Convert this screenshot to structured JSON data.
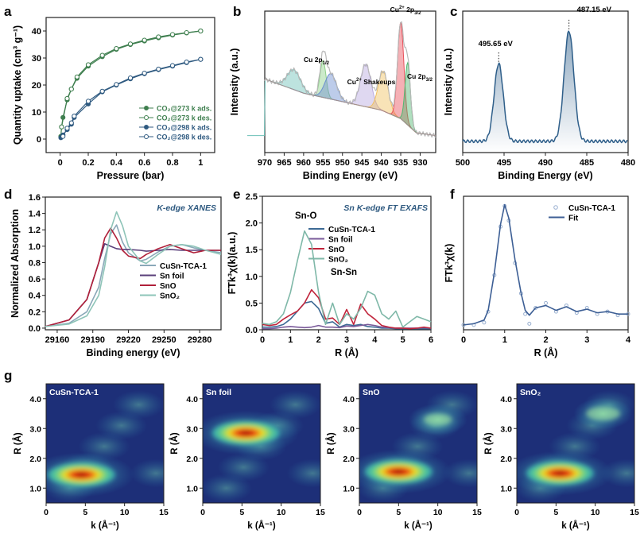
{
  "chart_data": [
    {
      "panel": "a",
      "type": "line",
      "xlabel": "Pressure (bar)",
      "ylabel": "Quantity uptake (cm³ g⁻¹)",
      "xlim": [
        -0.1,
        1.1
      ],
      "ylim": [
        -5,
        45
      ],
      "xticks": [
        0.0,
        0.2,
        0.4,
        0.6,
        0.8,
        1.0
      ],
      "yticks": [
        0,
        10,
        20,
        30,
        40
      ],
      "legend": "bottom-right",
      "series": [
        {
          "name": "CO₂@273 k ads.",
          "color": "#3f7f4f",
          "filled": true,
          "points": [
            [
              0.005,
              1
            ],
            [
              0.01,
              4.5
            ],
            [
              0.02,
              8
            ],
            [
              0.05,
              14.5
            ],
            [
              0.08,
              18.5
            ],
            [
              0.12,
              22.5
            ],
            [
              0.2,
              27
            ],
            [
              0.3,
              30.5
            ],
            [
              0.4,
              33.2
            ],
            [
              0.5,
              35
            ],
            [
              0.6,
              36.3
            ],
            [
              0.7,
              37.5
            ],
            [
              0.8,
              38.5
            ],
            [
              0.9,
              39.3
            ],
            [
              1.0,
              40
            ]
          ]
        },
        {
          "name": "CO₂@273 k des.",
          "color": "#3f7f4f",
          "filled": false,
          "points": [
            [
              0.01,
              4.5
            ],
            [
              0.05,
              15
            ],
            [
              0.08,
              18.5
            ],
            [
              0.12,
              23
            ],
            [
              0.2,
              27.5
            ],
            [
              0.3,
              31
            ],
            [
              0.4,
              33.5
            ],
            [
              0.5,
              35.2
            ],
            [
              0.6,
              36.6
            ],
            [
              0.7,
              37.8
            ],
            [
              0.8,
              38.7
            ],
            [
              0.9,
              39.4
            ],
            [
              1.0,
              40
            ]
          ]
        },
        {
          "name": "CO₂@298 k ads.",
          "color": "#2f5a80",
          "filled": true,
          "points": [
            [
              0.005,
              0.5
            ],
            [
              0.02,
              1.5
            ],
            [
              0.05,
              3.5
            ],
            [
              0.08,
              5.5
            ],
            [
              0.1,
              8
            ],
            [
              0.2,
              13
            ],
            [
              0.3,
              17.5
            ],
            [
              0.4,
              20
            ],
            [
              0.5,
              22.3
            ],
            [
              0.6,
              24.2
            ],
            [
              0.7,
              25.7
            ],
            [
              0.8,
              27
            ],
            [
              0.9,
              28.3
            ],
            [
              1.0,
              29.5
            ]
          ]
        },
        {
          "name": "CO₂@298 k des.",
          "color": "#2f5a80",
          "filled": false,
          "points": [
            [
              0.02,
              1
            ],
            [
              0.05,
              4
            ],
            [
              0.08,
              6
            ],
            [
              0.1,
              8.5
            ],
            [
              0.2,
              14
            ],
            [
              0.3,
              17.7
            ],
            [
              0.4,
              20.2
            ],
            [
              0.5,
              22.6
            ],
            [
              0.6,
              24.4
            ],
            [
              0.7,
              25.9
            ],
            [
              0.8,
              27.2
            ],
            [
              0.9,
              28.5
            ],
            [
              1.0,
              29.5
            ]
          ]
        }
      ]
    },
    {
      "panel": "b",
      "type": "line",
      "xlabel": "Binding Energy (eV)",
      "ylabel": "Intensity (a.u.)",
      "xlim": [
        970,
        926
      ],
      "ylim": [
        0,
        100
      ],
      "xticks": [
        970,
        965,
        960,
        955,
        950,
        945,
        940,
        935,
        930
      ],
      "baseline": [
        [
          970,
          52
        ],
        [
          960,
          42
        ],
        [
          950,
          36
        ],
        [
          940,
          30
        ],
        [
          935,
          24
        ],
        [
          931,
          14
        ],
        [
          926,
          12
        ]
      ],
      "peaks": [
        {
          "center": 962.5,
          "fwhm": 4,
          "height": 14,
          "color": "#6cc0b8"
        },
        {
          "center": 955,
          "fwhm": 1.8,
          "height": 26,
          "color": "#8fd08a"
        },
        {
          "center": 953,
          "fwhm": 3.5,
          "height": 18,
          "color": "#6c8fd0"
        },
        {
          "center": 944,
          "fwhm": 3.2,
          "height": 30,
          "color": "#b9a8e0"
        },
        {
          "center": 939.5,
          "fwhm": 3,
          "height": 28,
          "color": "#f0c060"
        },
        {
          "center": 935,
          "fwhm": 1.9,
          "height": 68,
          "color": "#e8505a"
        },
        {
          "center": 933.2,
          "fwhm": 1.6,
          "height": 44,
          "color": "#50b870"
        }
      ],
      "annotations": [
        {
          "text": "Cu 2p",
          "sub": "1/2",
          "sup": ""
        },
        {
          "text": "Cu",
          "sup": "2+",
          "after": " Shakeups"
        },
        {
          "text": "Cu",
          "sup": "2+",
          "after": " 2p",
          "sub": "3/2"
        },
        {
          "text": "Cu 2p",
          "sub": "3/2",
          "sup": ""
        }
      ]
    },
    {
      "panel": "c",
      "type": "line",
      "xlabel": "Binding Energy (eV)",
      "ylabel": "Intensity (a.u.)",
      "xlim": [
        500,
        480
      ],
      "ylim": [
        0,
        100
      ],
      "xticks": [
        500,
        495,
        490,
        485,
        480
      ],
      "peaks": [
        {
          "center": 495.65,
          "fwhm": 1.3,
          "height": 55
        },
        {
          "center": 487.15,
          "fwhm": 1.4,
          "height": 78
        }
      ],
      "color": "#2f5f8a",
      "annotations": [
        "495.65 eV",
        "487.15 eV"
      ]
    },
    {
      "panel": "d",
      "type": "line",
      "xlabel": "Binding energy (eV)",
      "ylabel": "Normalized Absorption",
      "title": "K-edge XANES",
      "xlim": [
        29150,
        29298
      ],
      "ylim": [
        -0.02,
        1.6
      ],
      "xticks": [
        29160,
        29190,
        29220,
        29250,
        29280
      ],
      "yticks": [
        0.0,
        0.2,
        0.4,
        0.6,
        0.8,
        1.0,
        1.2,
        1.4,
        1.6
      ],
      "legend": "bottom-right",
      "x": [
        29150,
        29170,
        29185,
        29195,
        29200,
        29205,
        29210,
        29215,
        29220,
        29230,
        29235,
        29245,
        29255,
        29265,
        29275,
        29285,
        29298
      ],
      "series": [
        {
          "name": "CuSn-TCA-1",
          "color": "#8aa8b8",
          "values": [
            0.02,
            0.06,
            0.2,
            0.5,
            0.85,
            1.15,
            1.26,
            1.05,
            0.92,
            0.82,
            0.84,
            0.93,
            1.0,
            1.02,
            0.98,
            0.95,
            0.92
          ]
        },
        {
          "name": "Sn foil",
          "color": "#5a3f7a",
          "values": [
            0.02,
            0.1,
            0.35,
            0.8,
            1.03,
            1.0,
            0.97,
            0.96,
            0.96,
            0.95,
            0.94,
            0.95,
            0.96,
            0.95,
            0.95,
            0.95,
            0.95
          ]
        },
        {
          "name": "SnO",
          "color": "#b0203a",
          "values": [
            0.02,
            0.1,
            0.35,
            0.8,
            1.1,
            1.22,
            1.1,
            0.95,
            0.88,
            0.85,
            0.9,
            0.97,
            1.02,
            0.97,
            0.92,
            0.95,
            0.95
          ]
        },
        {
          "name": "SnO₂",
          "color": "#8ec4b8",
          "values": [
            0.02,
            0.05,
            0.15,
            0.4,
            0.75,
            1.2,
            1.42,
            1.25,
            1.0,
            0.82,
            0.79,
            0.9,
            1.0,
            1.02,
            1.0,
            0.95,
            0.9
          ]
        }
      ]
    },
    {
      "panel": "e",
      "type": "line",
      "xlabel": "R (Å)",
      "ylabel": "FTk³χ(k)(a.u.)",
      "title": "Sn K-edge FT EXAFS",
      "xlim": [
        0,
        6
      ],
      "ylim": [
        0,
        2.5
      ],
      "xticks": [
        0,
        1,
        2,
        3,
        4,
        5,
        6
      ],
      "yticks": [
        0.0,
        0.5,
        1.0,
        1.5,
        2.0,
        2.5
      ],
      "legend": "top-right",
      "annotations": [
        "Sn-O",
        "Sn-Sn"
      ],
      "x": [
        0,
        0.25,
        0.5,
        0.75,
        1,
        1.25,
        1.5,
        1.75,
        2,
        2.25,
        2.5,
        2.75,
        3,
        3.25,
        3.5,
        3.75,
        4,
        4.25,
        4.5,
        4.75,
        5,
        5.25,
        5.5,
        5.75,
        6
      ],
      "series": [
        {
          "name": "CuSn-TCA-1",
          "color": "#3d6a95",
          "values": [
            0.05,
            0.05,
            0.06,
            0.1,
            0.2,
            0.35,
            0.5,
            0.53,
            0.4,
            0.12,
            0.15,
            0.05,
            0.1,
            0.08,
            0.1,
            0.06,
            0.05,
            0.03,
            0.03,
            0.02,
            0.02,
            0.02,
            0.02,
            0.02,
            0.02
          ]
        },
        {
          "name": "Sn foil",
          "color": "#7a5a9a",
          "values": [
            0.02,
            0.02,
            0.03,
            0.05,
            0.06,
            0.05,
            0.04,
            0.05,
            0.08,
            0.05,
            0.05,
            0.04,
            0.07,
            0.06,
            0.08,
            0.1,
            0.08,
            0.05,
            0.04,
            0.03,
            0.03,
            0.03,
            0.03,
            0.04,
            0.03
          ]
        },
        {
          "name": "SnO",
          "color": "#c0233a",
          "values": [
            0.1,
            0.08,
            0.1,
            0.2,
            0.28,
            0.35,
            0.5,
            0.75,
            0.6,
            0.2,
            0.22,
            0.1,
            0.38,
            0.1,
            0.48,
            0.3,
            0.2,
            0.08,
            0.05,
            0.03,
            0.03,
            0.02,
            0.03,
            0.05,
            0.03
          ]
        },
        {
          "name": "SnO₂",
          "color": "#7fb8a8",
          "values": [
            0.12,
            0.1,
            0.15,
            0.3,
            0.7,
            1.3,
            1.85,
            1.6,
            0.7,
            0.1,
            0.5,
            0.1,
            0.3,
            0.2,
            0.4,
            0.72,
            0.65,
            0.3,
            0.2,
            0.35,
            0.05,
            0.15,
            0.25,
            0.2,
            0.15
          ]
        }
      ]
    },
    {
      "panel": "f",
      "type": "line",
      "xlabel": "R (Å)",
      "ylabel": "FTk³χ(k)",
      "xlim": [
        0,
        4
      ],
      "ylim": [
        0,
        11
      ],
      "xticks": [
        0,
        1,
        2,
        3,
        4
      ],
      "legend": "top-right",
      "x": [
        0,
        0.25,
        0.5,
        0.6,
        0.75,
        0.9,
        1.0,
        1.1,
        1.25,
        1.4,
        1.5,
        1.6,
        1.75,
        2,
        2.25,
        2.5,
        2.75,
        3,
        3.25,
        3.5,
        3.75,
        4
      ],
      "series": [
        {
          "name": "CuSn-TCA-1",
          "color": "#9ab0d0",
          "marker": "circle",
          "values": [
            0.4,
            0.4,
            0.6,
            1.5,
            4.5,
            8.5,
            10.2,
            9,
            5.5,
            3,
            1.3,
            0.5,
            1.8,
            2.2,
            1.5,
            2.0,
            1.4,
            1.8,
            1.3,
            1.5,
            1.2,
            1.3
          ]
        },
        {
          "name": "Fit",
          "color": "#3d5f95",
          "values": [
            0.4,
            0.5,
            0.8,
            1.6,
            4.7,
            8.7,
            10.3,
            9.2,
            5.8,
            3,
            1.6,
            1.2,
            1.8,
            2.0,
            1.6,
            1.9,
            1.5,
            1.7,
            1.4,
            1.5,
            1.3,
            1.3
          ]
        }
      ]
    },
    {
      "panel": "g",
      "type": "heatmap",
      "xlabel": "k (Å⁻¹)",
      "ylabel": "R (Å)",
      "xlim": [
        0,
        15
      ],
      "ylim": [
        0.5,
        4.5
      ],
      "xticks": [
        0,
        5,
        10,
        15
      ],
      "yticks": [
        1.0,
        2.0,
        3.0,
        4.0
      ],
      "maps": [
        {
          "name": "CuSn-TCA-1",
          "maxima": [
            {
              "k": 4.5,
              "R": 1.45,
              "intensity": 1.0
            }
          ]
        },
        {
          "name": "Sn foil",
          "maxima": [
            {
              "k": 5.5,
              "R": 2.85,
              "intensity": 1.0
            }
          ]
        },
        {
          "name": "SnO",
          "maxima": [
            {
              "k": 5,
              "R": 1.55,
              "intensity": 1.0
            },
            {
              "k": 10,
              "R": 3.3,
              "intensity": 0.35
            }
          ]
        },
        {
          "name": "SnO₂",
          "maxima": [
            {
              "k": 5.5,
              "R": 1.5,
              "intensity": 1.0
            },
            {
              "k": 11,
              "R": 3.5,
              "intensity": 0.45
            }
          ]
        }
      ]
    }
  ],
  "panel_letters": [
    "a",
    "b",
    "c",
    "d",
    "e",
    "f",
    "g"
  ]
}
